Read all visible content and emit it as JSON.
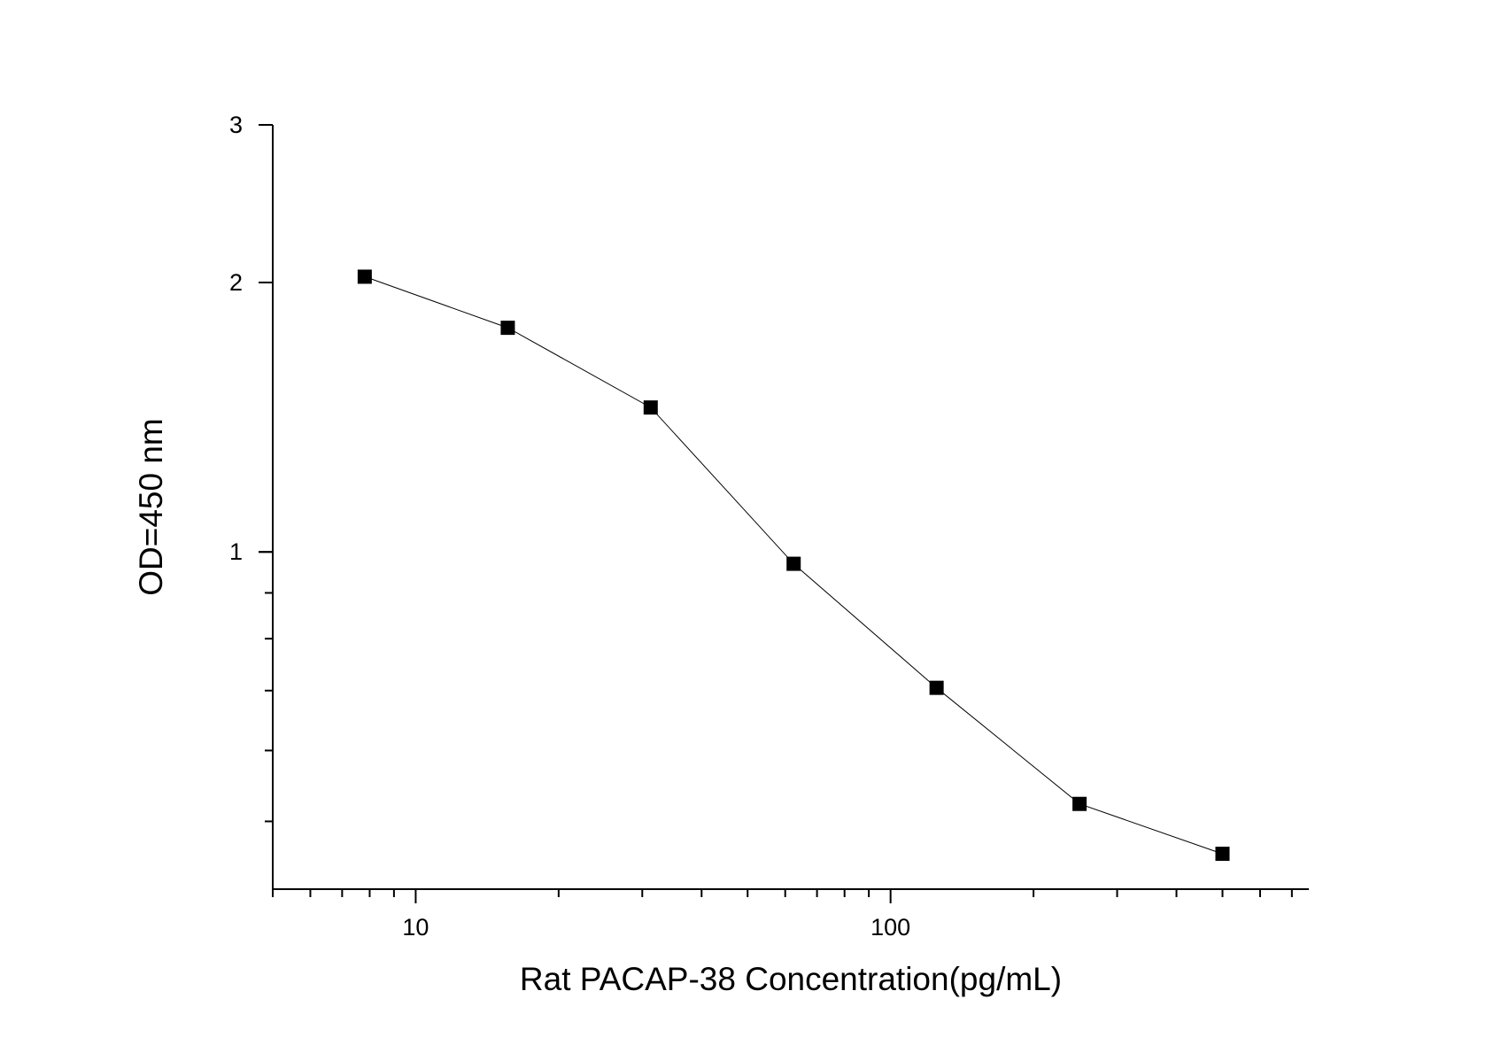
{
  "chart_data": {
    "type": "scatter",
    "title": "",
    "xlabel": "Rat PACAP-38 Concentration(pg/mL)",
    "ylabel": "OD=450 nm",
    "x_scale": "log",
    "y_scale": "log",
    "xlim": [
      5,
      760
    ],
    "ylim": [
      0.42,
      3
    ],
    "x_ticks": [
      {
        "value": 10,
        "label": "10"
      },
      {
        "value": 100,
        "label": "100"
      }
    ],
    "y_ticks": [
      {
        "value": 1,
        "label": "1"
      },
      {
        "value": 2,
        "label": "2"
      },
      {
        "value": 3,
        "label": "3"
      }
    ],
    "grid": false,
    "legend": "none",
    "series": [
      {
        "color": "#000000",
        "marker": "square",
        "x": [
          7.81,
          15.63,
          31.25,
          62.5,
          125,
          250,
          500
        ],
        "y": [
          2.03,
          1.78,
          1.45,
          0.97,
          0.705,
          0.523,
          0.46
        ]
      }
    ]
  }
}
